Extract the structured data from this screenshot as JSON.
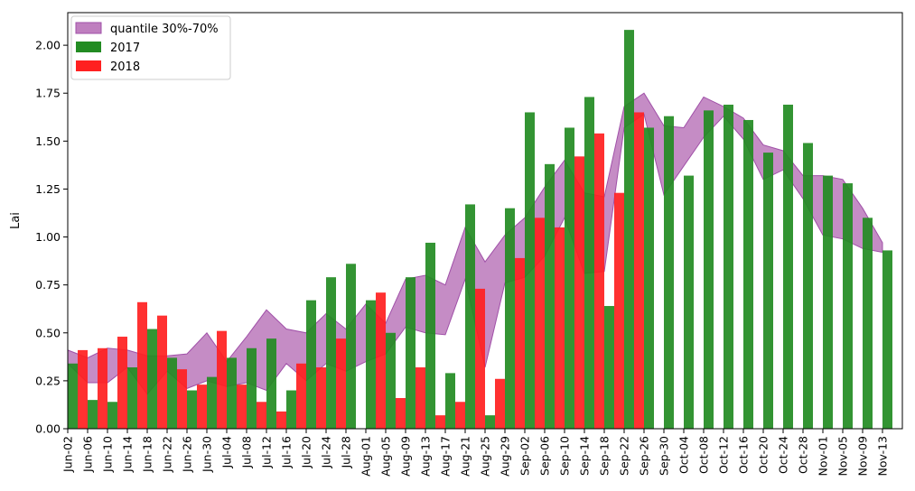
{
  "chart_data": {
    "type": "bar",
    "ylabel": "Lai",
    "ylim": [
      0,
      2.17
    ],
    "yticks": [
      0.0,
      0.25,
      0.5,
      0.75,
      1.0,
      1.25,
      1.5,
      1.75,
      2.0
    ],
    "ytick_labels": [
      "0.00",
      "0.25",
      "0.50",
      "0.75",
      "1.00",
      "1.25",
      "1.50",
      "1.75",
      "2.00"
    ],
    "legend_position": "upper-left",
    "categories": [
      "Jun-02",
      "Jun-06",
      "Jun-10",
      "Jun-14",
      "Jun-18",
      "Jun-22",
      "Jun-26",
      "Jun-30",
      "Jul-04",
      "Jul-08",
      "Jul-12",
      "Jul-16",
      "Jul-20",
      "Jul-24",
      "Jul-28",
      "Aug-01",
      "Aug-05",
      "Aug-09",
      "Aug-13",
      "Aug-17",
      "Aug-21",
      "Aug-25",
      "Aug-29",
      "Sep-02",
      "Sep-06",
      "Sep-10",
      "Sep-14",
      "Sep-18",
      "Sep-22",
      "Sep-26",
      "Sep-30",
      "Oct-04",
      "Oct-08",
      "Oct-12",
      "Oct-16",
      "Oct-20",
      "Oct-24",
      "Oct-28",
      "Nov-01",
      "Nov-05",
      "Nov-09",
      "Nov-13"
    ],
    "band": {
      "name": "quantile 30%-70%",
      "color": "#bf7fbf",
      "edge_color": "#a050a8",
      "lower": [
        0.34,
        0.24,
        0.24,
        0.32,
        0.18,
        0.3,
        0.21,
        0.25,
        0.22,
        0.24,
        0.2,
        0.34,
        0.25,
        0.34,
        0.3,
        0.35,
        0.39,
        0.53,
        0.5,
        0.49,
        0.78,
        0.32,
        0.76,
        0.79,
        0.9,
        1.1,
        0.81,
        0.82,
        1.57,
        1.64,
        1.22,
        1.37,
        1.52,
        1.63,
        1.51,
        1.3,
        1.35,
        1.2,
        1.01,
        0.99,
        0.94,
        0.92
      ],
      "upper": [
        0.41,
        0.37,
        0.42,
        0.41,
        0.38,
        0.38,
        0.39,
        0.5,
        0.35,
        0.48,
        0.62,
        0.52,
        0.5,
        0.6,
        0.52,
        0.65,
        0.55,
        0.78,
        0.8,
        0.75,
        1.05,
        0.87,
        1.01,
        1.1,
        1.26,
        1.4,
        1.23,
        1.21,
        1.68,
        1.75,
        1.58,
        1.57,
        1.73,
        1.68,
        1.62,
        1.48,
        1.45,
        1.32,
        1.32,
        1.3,
        1.15,
        0.97
      ]
    },
    "series": [
      {
        "name": "2017",
        "color": "#228b22",
        "values": [
          0.34,
          0.15,
          0.14,
          0.32,
          0.52,
          0.37,
          0.2,
          0.27,
          0.37,
          0.42,
          0.47,
          0.2,
          0.67,
          0.79,
          0.86,
          0.67,
          0.5,
          0.79,
          0.97,
          0.29,
          1.17,
          0.07,
          1.15,
          1.65,
          1.38,
          1.57,
          1.73,
          0.64,
          2.08,
          1.57,
          1.63,
          1.32,
          1.66,
          1.69,
          1.61,
          1.44,
          1.69,
          1.49,
          1.32,
          1.28,
          1.1,
          0.93
        ]
      },
      {
        "name": "2018",
        "color": "#ff2020",
        "values": [
          0.41,
          0.42,
          0.48,
          0.66,
          0.59,
          0.31,
          0.23,
          0.51,
          0.23,
          0.14,
          0.09,
          0.34,
          0.32,
          0.47,
          null,
          0.71,
          0.16,
          0.32,
          0.07,
          0.14,
          0.73,
          0.26,
          0.89,
          1.1,
          1.05,
          1.42,
          1.54,
          1.23,
          1.65,
          null,
          null,
          null,
          null,
          null,
          null,
          null,
          null,
          null,
          null,
          null,
          null,
          null
        ]
      }
    ]
  }
}
